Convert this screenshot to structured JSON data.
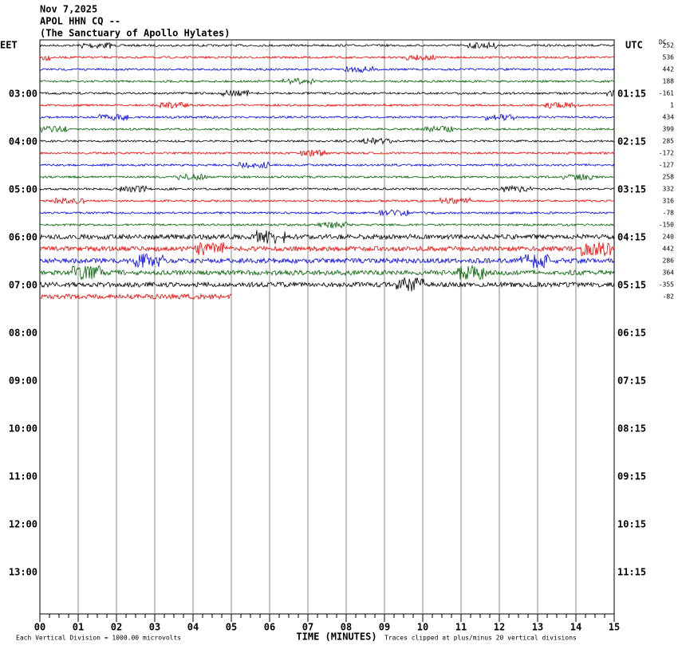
{
  "header": {
    "lines": [
      "Nov 7,2025",
      "APOL HHN CQ --",
      "(The Sanctuary of Apollo Hylates)"
    ]
  },
  "left_label": "EET",
  "right_label": "UTC",
  "dc_label": "DC",
  "eet_times": [
    "03:00",
    "04:00",
    "05:00",
    "06:00",
    "07:00",
    "08:00",
    "09:00",
    "10:00",
    "11:00",
    "12:00",
    "13:00"
  ],
  "utc_times": [
    "01:15",
    "02:15",
    "03:15",
    "04:15",
    "05:15",
    "06:15",
    "07:15",
    "08:15",
    "09:15",
    "10:15",
    "11:15"
  ],
  "dc_offsets": [
    252,
    536,
    442,
    188,
    -161,
    1,
    434,
    399,
    285,
    -172,
    -127,
    258,
    332,
    316,
    -78,
    -150,
    240,
    442,
    286,
    364,
    -355,
    -82
  ],
  "x_ticks": [
    "00",
    "01",
    "02",
    "03",
    "04",
    "05",
    "06",
    "07",
    "08",
    "09",
    "10",
    "11",
    "12",
    "13",
    "14",
    "15"
  ],
  "trace_colors": [
    "#000000",
    "#ff0000",
    "#0000ff",
    "#006400"
  ],
  "footer": {
    "scale_note": "Each Vertical Division = 1000.00 microvolts",
    "axis_title": "TIME (MINUTES)",
    "clip_note": "Traces clipped at plus/minus 20 vertical divisions"
  }
}
